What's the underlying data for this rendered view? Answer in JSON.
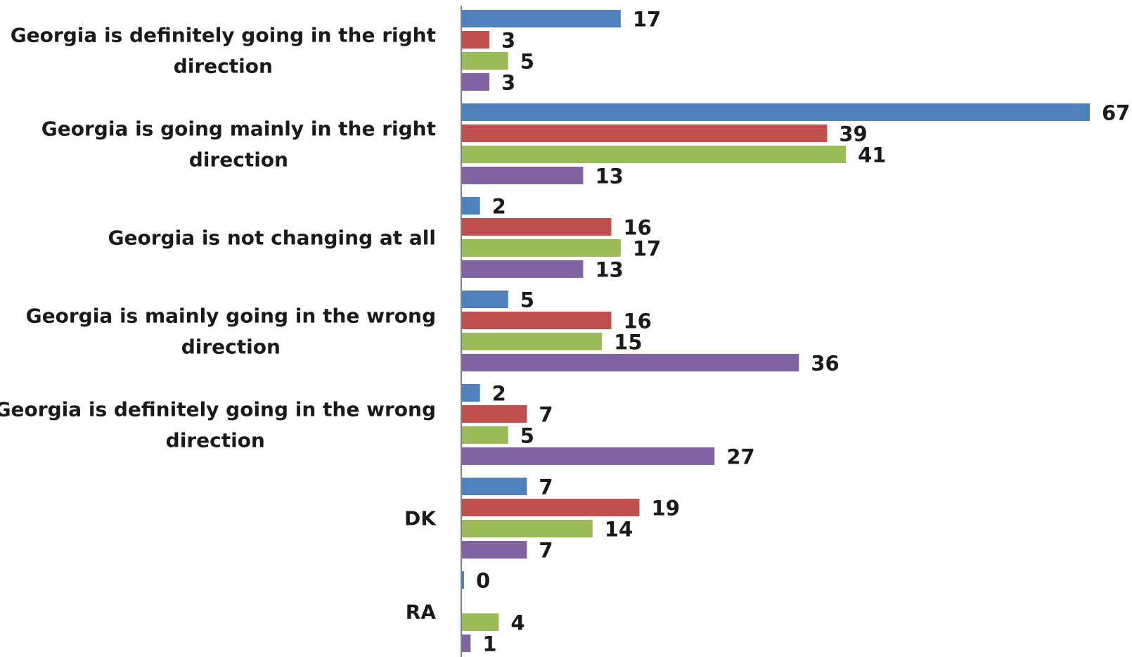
{
  "chart_data": {
    "type": "bar",
    "orientation": "horizontal",
    "title": "",
    "xlabel": "",
    "ylabel": "",
    "xlim": [
      0,
      67
    ],
    "grid": false,
    "legend": "none",
    "categories": [
      [
        "Georgia is definitely going in the right",
        "direction"
      ],
      [
        "Georgia is going mainly in the right",
        "direction"
      ],
      [
        "Georgia is not changing at all"
      ],
      [
        "Georgia is mainly going in the wrong",
        "direction"
      ],
      [
        "Georgia is definitely going in the wrong",
        "direction"
      ],
      [
        "DK"
      ],
      [
        "RA"
      ]
    ],
    "series": [
      {
        "color": "#4F81BD",
        "values": [
          17,
          67,
          2,
          5,
          2,
          7,
          0
        ]
      },
      {
        "color": "#C0504D",
        "values": [
          3,
          39,
          16,
          16,
          7,
          19,
          null
        ]
      },
      {
        "color": "#9BBB59",
        "values": [
          5,
          41,
          17,
          15,
          5,
          14,
          4
        ]
      },
      {
        "color": "#8064A2",
        "values": [
          3,
          13,
          13,
          36,
          27,
          7,
          1
        ]
      }
    ]
  }
}
